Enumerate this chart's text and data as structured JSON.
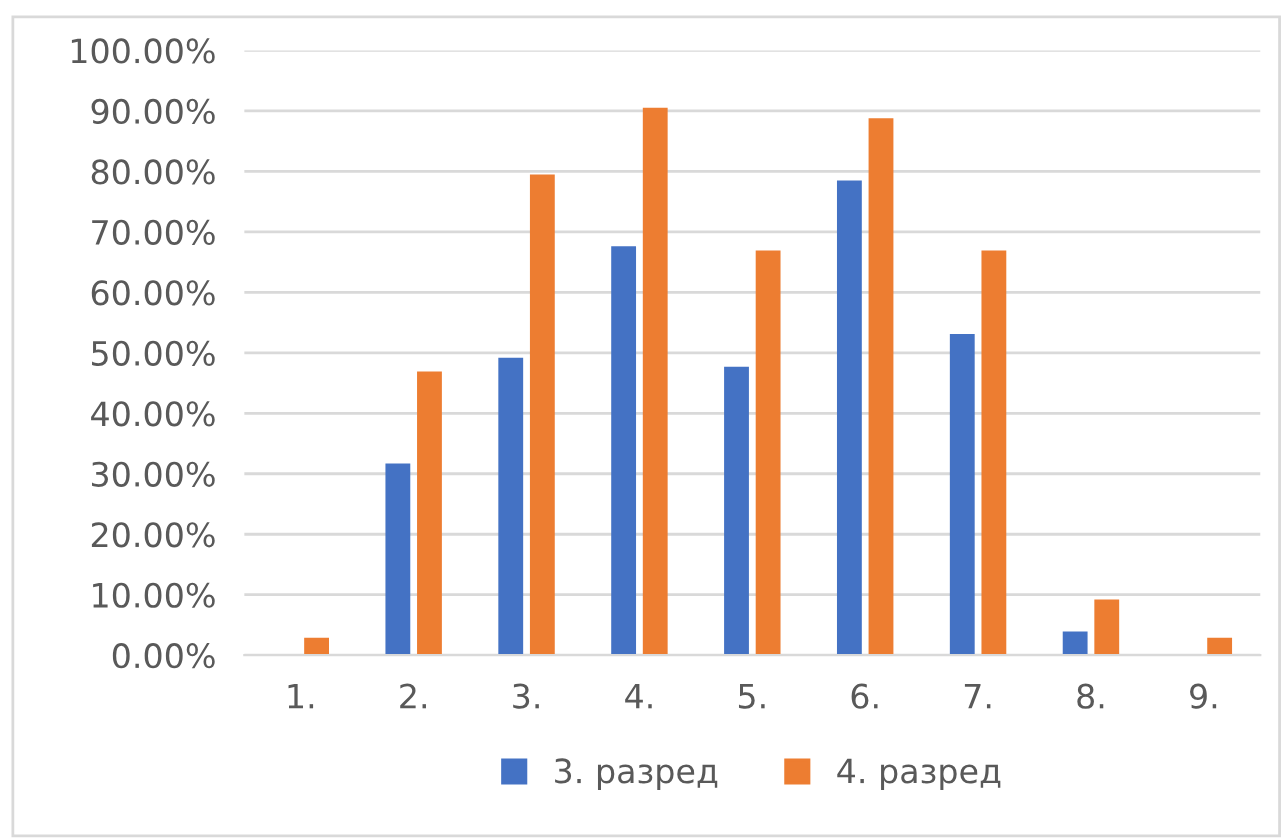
{
  "chart_data": {
    "type": "bar",
    "categories": [
      "1.",
      "2.",
      "3.",
      "4.",
      "5.",
      "6.",
      "7.",
      "8.",
      "9."
    ],
    "series": [
      {
        "name": "3. разред",
        "color": "#4472c4",
        "values": [
          0,
          31.7,
          49.2,
          67.6,
          47.7,
          78.5,
          53.1,
          3.9,
          0
        ]
      },
      {
        "name": "4. разред",
        "color": "#ed7d31",
        "values": [
          2.9,
          46.9,
          79.5,
          90.5,
          66.9,
          88.8,
          66.9,
          9.2,
          2.9
        ]
      }
    ],
    "ylim": [
      0,
      100
    ],
    "yticks": [
      {
        "value": 0,
        "label": "0.00%"
      },
      {
        "value": 10,
        "label": "10.00%"
      },
      {
        "value": 20,
        "label": "20.00%"
      },
      {
        "value": 30,
        "label": "30.00%"
      },
      {
        "value": 40,
        "label": "40.00%"
      },
      {
        "value": 50,
        "label": "50.00%"
      },
      {
        "value": 60,
        "label": "60.00%"
      },
      {
        "value": 70,
        "label": "70.00%"
      },
      {
        "value": 80,
        "label": "80.00%"
      },
      {
        "value": 90,
        "label": "90.00%"
      },
      {
        "value": 100,
        "label": "100.00%"
      }
    ],
    "grid": "y",
    "legend": "bottom"
  }
}
